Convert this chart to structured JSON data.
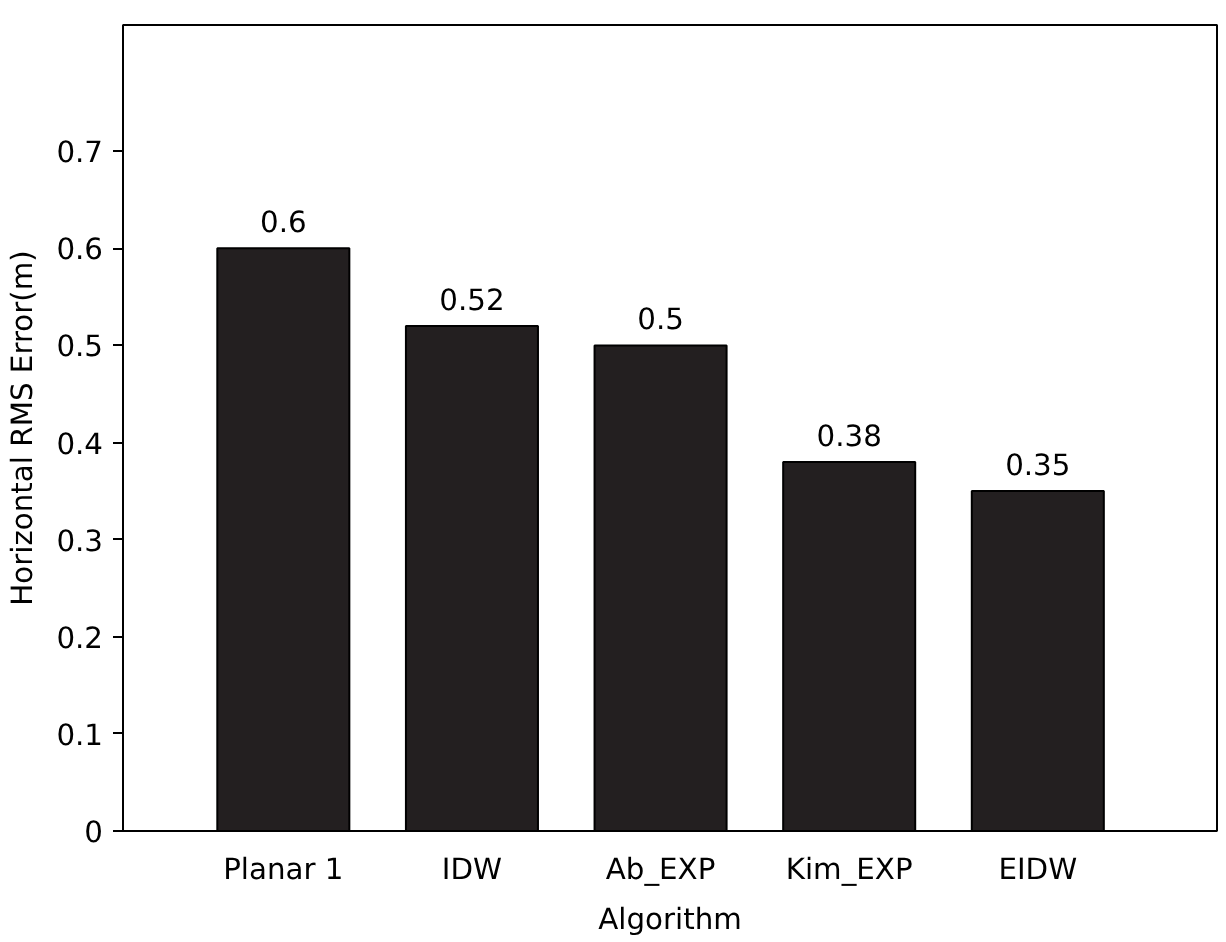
{
  "chart_data": {
    "type": "bar",
    "xlabel": "Algorithm",
    "ylabel": "Horizontal RMS Error(m)",
    "categories": [
      "Planar 1",
      "IDW",
      "Ab_EXP",
      "Kim_EXP",
      "EIDW"
    ],
    "values": [
      0.6,
      0.52,
      0.5,
      0.38,
      0.35
    ],
    "color": "#231f20",
    "ylim": [
      0,
      0.83
    ],
    "yticks": [
      0,
      0.1,
      0.2,
      0.3,
      0.4,
      0.5,
      0.6,
      0.7
    ],
    "data_labels": true,
    "grid": false
  }
}
